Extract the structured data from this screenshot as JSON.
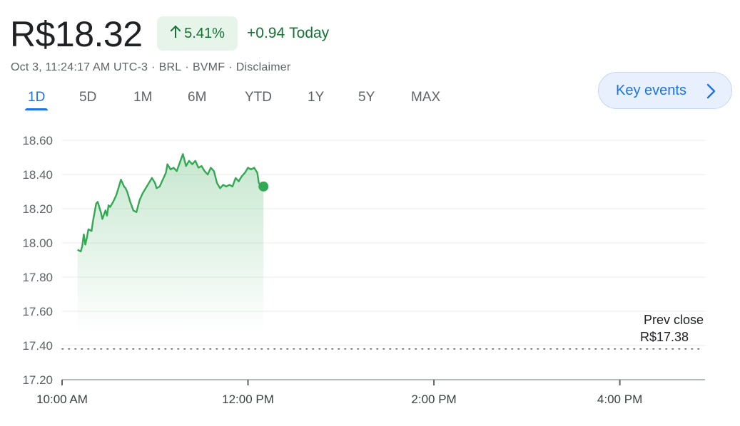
{
  "quote": {
    "price": "R$18.32",
    "percent_change": "5.41%",
    "change": "+0.94",
    "change_period": "Today",
    "timestamp": "Oct 3, 11:24:17 AM UTC-3",
    "currency": "BRL",
    "exchange": "BVMF",
    "disclaimer": "Disclaimer"
  },
  "tabs": [
    {
      "label": "1D",
      "active": true
    },
    {
      "label": "5D",
      "active": false
    },
    {
      "label": "1M",
      "active": false
    },
    {
      "label": "6M",
      "active": false
    },
    {
      "label": "YTD",
      "active": false
    },
    {
      "label": "1Y",
      "active": false
    },
    {
      "label": "5Y",
      "active": false
    },
    {
      "label": "MAX",
      "active": false
    }
  ],
  "key_events": {
    "label": "Key events",
    "icon": "chevron-right-icon"
  },
  "colors": {
    "up": "#137333",
    "line": "#34a853",
    "accent": "#1a73e8"
  },
  "chart_data": {
    "type": "line",
    "y_tick_labels": [
      "18.60",
      "18.40",
      "18.20",
      "18.00",
      "17.80",
      "17.60",
      "17.40",
      "17.20"
    ],
    "y_ticks": [
      18.6,
      18.4,
      18.2,
      18.0,
      17.8,
      17.6,
      17.4,
      17.2
    ],
    "ylim": [
      17.2,
      18.6
    ],
    "x_tick_labels": [
      "10:00 AM",
      "12:00 PM",
      "2:00 PM",
      "4:00 PM"
    ],
    "x_ticks": [
      0,
      120,
      240,
      360
    ],
    "xlim": [
      0,
      415
    ],
    "prev_close": {
      "label": "Prev close",
      "value": 17.38,
      "value_label": "R$17.38"
    },
    "grid": true,
    "series": [
      {
        "x": [
          10,
          12,
          13,
          14,
          15,
          16,
          17,
          19,
          20,
          21,
          22,
          23,
          24,
          25,
          26,
          28,
          29,
          30,
          31,
          33,
          35,
          36,
          38,
          40,
          41,
          42,
          44,
          46,
          48,
          50,
          52,
          54,
          56,
          58,
          60,
          61,
          63,
          65,
          67,
          68,
          70,
          72,
          74,
          76,
          78,
          80,
          82,
          84,
          86,
          88,
          90,
          92,
          94,
          96,
          98,
          100,
          102,
          104,
          106,
          108,
          110,
          112,
          114,
          116,
          118,
          120,
          122,
          124,
          126,
          127,
          128,
          129,
          130
        ],
        "y": [
          17.96,
          17.95,
          17.98,
          18.05,
          17.99,
          18.03,
          18.08,
          18.07,
          18.13,
          18.18,
          18.23,
          18.24,
          18.21,
          18.18,
          18.14,
          18.19,
          18.16,
          18.22,
          18.21,
          18.24,
          18.28,
          18.31,
          18.37,
          18.33,
          18.32,
          18.3,
          18.24,
          18.19,
          18.18,
          18.25,
          18.29,
          18.32,
          18.35,
          18.38,
          18.35,
          18.32,
          18.33,
          18.37,
          18.41,
          18.46,
          18.43,
          18.44,
          18.42,
          18.47,
          18.52,
          18.45,
          18.48,
          18.46,
          18.48,
          18.44,
          18.45,
          18.42,
          18.4,
          18.44,
          18.42,
          18.35,
          18.32,
          18.34,
          18.33,
          18.34,
          18.33,
          18.38,
          18.36,
          18.39,
          18.41,
          18.44,
          18.43,
          18.44,
          18.41,
          18.35,
          18.34,
          18.33,
          18.33
        ]
      }
    ]
  }
}
